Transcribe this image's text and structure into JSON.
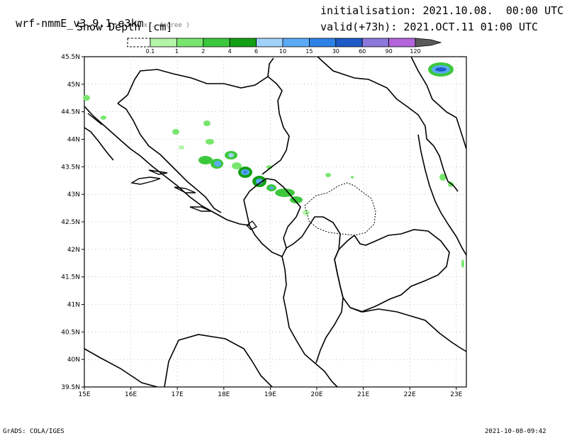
{
  "header": {
    "model": "wrf-nmmE_v3.9.1-e3km",
    "units_note": "x . degree )",
    "field": "Snow Depth [cm]",
    "init": "initialisation: 2021.10.08.  00:00 UTC",
    "valid": "valid(+73h): 2021.OCT.11 01:00 UTC"
  },
  "colorbar": {
    "labels": [
      "0.1",
      "1",
      "2",
      "4",
      "6",
      "10",
      "15",
      "30",
      "60",
      "90",
      "120"
    ],
    "colors": [
      "#b4f5a8",
      "#78e66e",
      "#3cc83c",
      "#14a014",
      "#a0d2fa",
      "#5aaaf5",
      "#2d82e6",
      "#1e5ac8",
      "#8c78dc",
      "#b464dc",
      "#5a5a5a"
    ]
  },
  "axes": {
    "lat_labels": [
      "45.5N",
      "45N",
      "44.5N",
      "44N",
      "43.5N",
      "43N",
      "42.5N",
      "42N",
      "41.5N",
      "41N",
      "40.5N",
      "40N",
      "39.5N"
    ],
    "lon_labels": [
      "15E",
      "16E",
      "17E",
      "18E",
      "19E",
      "20E",
      "21E",
      "22E",
      "23E"
    ]
  },
  "footer": {
    "left": "GrADS: COLA/IGES",
    "right": "2021-10-08-09:42"
  }
}
